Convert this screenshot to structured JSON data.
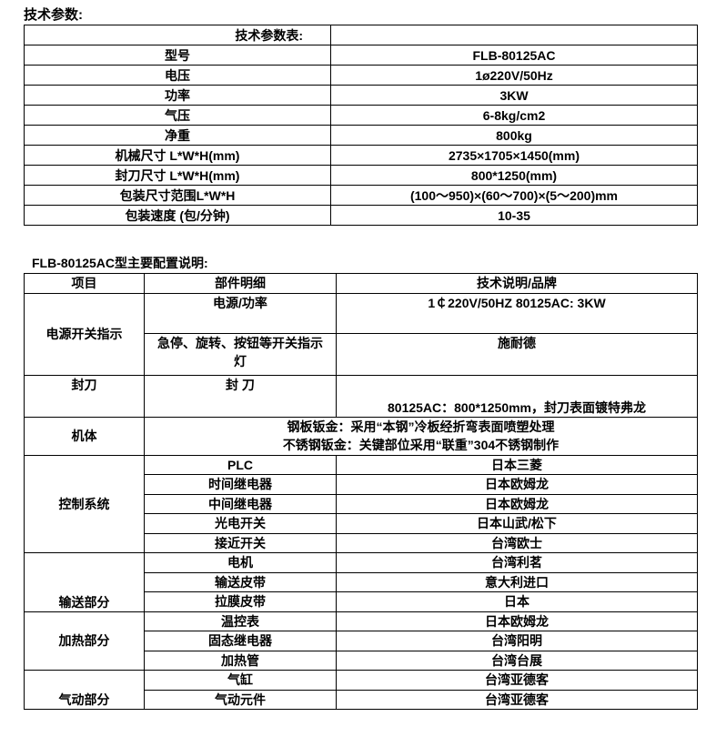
{
  "section1_title": "技术参数:",
  "spec_table": {
    "header": [
      "技术参数表:",
      ""
    ],
    "rows": [
      [
        "型号",
        "FLB-80125AC"
      ],
      [
        "电压",
        "1ø220V/50Hz"
      ],
      [
        "功率",
        "3KW"
      ],
      [
        "气压",
        "6-8kg/cm2"
      ],
      [
        "净重",
        "800kg"
      ],
      [
        "机械尺寸  L*W*H(mm)",
        "2735×1705×1450(mm)"
      ],
      [
        "封刀尺寸  L*W*H(mm)",
        "800*1250(mm)"
      ],
      [
        "包装尺寸范围L*W*H",
        "(100～950)×(60～700)×(5～200)mm"
      ],
      [
        "包装速度 (包/分钟)",
        "10-35"
      ]
    ]
  },
  "section2_title": "FLB-80125AC型主要配置说明:",
  "config_table": {
    "header": [
      "项目",
      "部件明细",
      "技术说明/品牌"
    ],
    "power": {
      "item": "电源开关指示",
      "rows": [
        [
          "电源/功率",
          "1￠220V/50HZ  80125AC: 3KW"
        ],
        [
          "急停、旋转、按钮等开关指示灯",
          "施耐德"
        ]
      ]
    },
    "sealer": {
      "item": "封刀",
      "part": "封 刀",
      "desc": "80125AC：800*1250mm，封刀表面镀特弗龙"
    },
    "body": {
      "item": "机体",
      "lines": [
        "钢板钣金：采用“本钢”冷板经折弯表面喷塑处理",
        "不锈钢钣金：关键部位采用“联重”304不锈钢制作"
      ]
    },
    "control": {
      "item": "控制系统",
      "rows": [
        [
          "PLC",
          "日本三菱"
        ],
        [
          "时间继电器",
          "日本欧姆龙"
        ],
        [
          "中间继电器",
          "日本欧姆龙"
        ],
        [
          "光电开关",
          "日本山武/松下"
        ],
        [
          "接近开关",
          "台湾欧士"
        ]
      ]
    },
    "conveyor": {
      "item": "输送部分",
      "rows": [
        [
          "电机",
          "台湾利茗"
        ],
        [
          "输送皮带",
          "意大利进口"
        ],
        [
          "拉膜皮带",
          "日本"
        ]
      ]
    },
    "heating": {
      "item": "加热部分",
      "rows": [
        [
          "温控表",
          "日本欧姆龙"
        ],
        [
          "固态继电器",
          "台湾阳明"
        ],
        [
          "加热管",
          "台湾台展"
        ]
      ]
    },
    "pneumatic": {
      "item": "气动部分",
      "rows": [
        [
          "气缸",
          "台湾亚德客"
        ],
        [
          "气动元件",
          "台湾亚德客"
        ]
      ]
    }
  }
}
